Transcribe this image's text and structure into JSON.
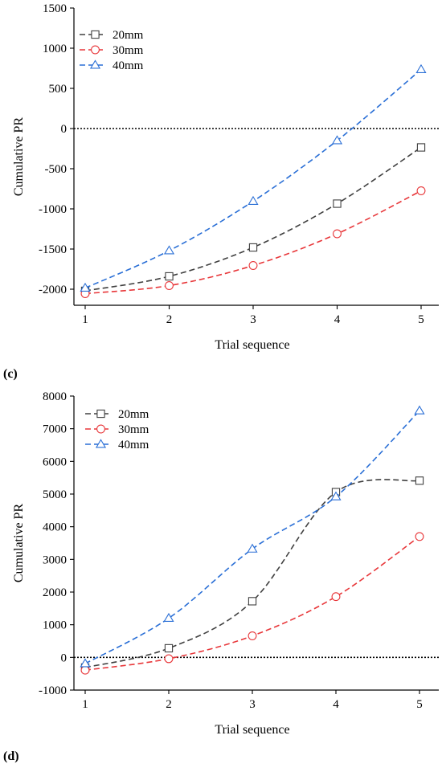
{
  "chart_data": [
    {
      "panel_label": "(c)",
      "type": "line",
      "xlabel": "Trial sequence",
      "ylabel": "Cumulative PR",
      "x": [
        1,
        2,
        3,
        4,
        5
      ],
      "ylim": [
        -2200,
        1500
      ],
      "yticks": [
        -2000,
        -1500,
        -1000,
        -500,
        0,
        500,
        1000,
        1500
      ],
      "reference_line": 0,
      "grid": false,
      "legend": "top-left",
      "series": [
        {
          "name": "20mm",
          "marker": "square",
          "color": "#404040",
          "values": [
            -2020,
            -1840,
            -1480,
            -935,
            -235
          ]
        },
        {
          "name": "30mm",
          "marker": "circle",
          "color": "#e8373a",
          "values": [
            -2055,
            -1955,
            -1705,
            -1310,
            -775
          ]
        },
        {
          "name": "40mm",
          "marker": "triangle",
          "color": "#2a6fd6",
          "values": [
            -1985,
            -1520,
            -905,
            -150,
            735
          ]
        }
      ]
    },
    {
      "panel_label": "(d)",
      "type": "line",
      "xlabel": "Trial sequence",
      "ylabel": "Cumulative PR",
      "x": [
        1,
        2,
        3,
        4,
        5
      ],
      "ylim": [
        -1000,
        8000
      ],
      "yticks": [
        -1000,
        0,
        1000,
        2000,
        3000,
        4000,
        5000,
        6000,
        7000,
        8000
      ],
      "reference_line": 0,
      "grid": false,
      "legend": "top-left",
      "series": [
        {
          "name": "20mm",
          "marker": "square",
          "color": "#404040",
          "values": [
            -310,
            280,
            1720,
            5060,
            5410
          ]
        },
        {
          "name": "30mm",
          "marker": "circle",
          "color": "#e8373a",
          "values": [
            -390,
            -40,
            660,
            1860,
            3700
          ]
        },
        {
          "name": "40mm",
          "marker": "triangle",
          "color": "#2a6fd6",
          "values": [
            -190,
            1200,
            3320,
            4920,
            7550
          ]
        }
      ]
    }
  ]
}
